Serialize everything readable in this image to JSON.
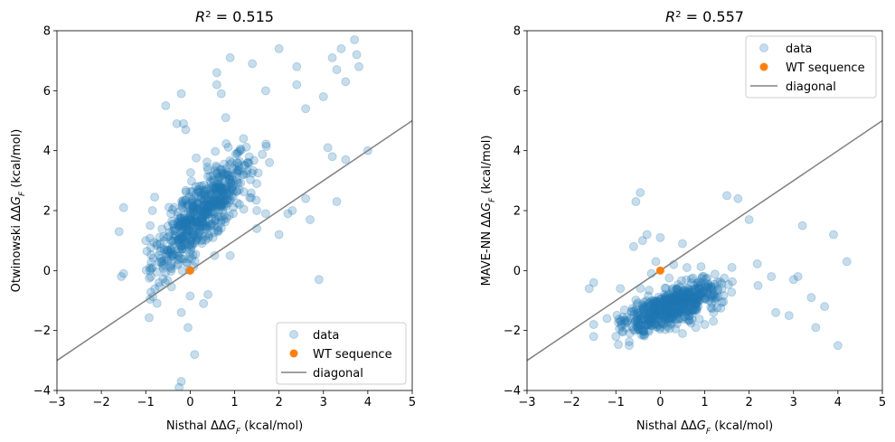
{
  "chart_data": [
    {
      "type": "scatter",
      "title": "R² = 0.515",
      "title_parts": {
        "r": "R",
        "sup": "2",
        "rest": " = 0.515"
      },
      "xlabel": "Nisthal ΔΔG_F (kcal/mol)",
      "xlabel_parts": {
        "pre": "Nisthal ΔΔ",
        "g": "G",
        "sub": "F",
        "post": " (kcal/mol)"
      },
      "ylabel": "Otwinowski ΔΔG_F (kcal/mol)",
      "ylabel_parts": {
        "pre": "Otwinowski ΔΔ",
        "g": "G",
        "sub": "F",
        "post": " (kcal/mol)"
      },
      "xlim": [
        -3,
        5
      ],
      "ylim": [
        -4,
        8
      ],
      "xticks": [
        -3,
        -2,
        -1,
        0,
        1,
        2,
        3,
        4,
        5
      ],
      "yticks": [
        -4,
        -2,
        0,
        2,
        4,
        6,
        8
      ],
      "xtick_labels": [
        "−3",
        "−2",
        "−1",
        "0",
        "1",
        "2",
        "3",
        "4",
        "5"
      ],
      "ytick_labels": [
        "−4",
        "−2",
        "0",
        "2",
        "4",
        "6",
        "8"
      ],
      "legend_position": "lower-right",
      "legend": [
        "data",
        "WT sequence",
        "diagonal"
      ],
      "series": [
        {
          "name": "data",
          "style": "scatter",
          "color": "#1f77b4",
          "alpha": 0.25,
          "trend": {
            "slope": 1.55,
            "intercept": 1.45
          },
          "points": [
            [
              -1.6,
              1.3
            ],
            [
              -1.5,
              2.1
            ],
            [
              -1.55,
              -0.2
            ],
            [
              -1.5,
              -0.1
            ],
            [
              -1.0,
              1.0
            ],
            [
              -0.9,
              1.5
            ],
            [
              -0.85,
              2.0
            ],
            [
              -0.8,
              2.45
            ],
            [
              -0.75,
              -0.05
            ],
            [
              -0.7,
              -0.4
            ],
            [
              -0.6,
              0.2
            ],
            [
              -0.55,
              5.5
            ],
            [
              -0.3,
              4.9
            ],
            [
              -0.2,
              5.9
            ],
            [
              -0.15,
              4.9
            ],
            [
              -0.1,
              4.7
            ],
            [
              -0.2,
              -1.4
            ],
            [
              -0.05,
              -1.9
            ],
            [
              0.0,
              -0.85
            ],
            [
              0.1,
              -2.8
            ],
            [
              -0.2,
              -3.7
            ],
            [
              -0.25,
              -3.9
            ],
            [
              0.3,
              -1.1
            ],
            [
              0.4,
              -0.8
            ],
            [
              0.55,
              0.5
            ],
            [
              0.6,
              6.6
            ],
            [
              0.6,
              6.2
            ],
            [
              0.7,
              5.9
            ],
            [
              0.9,
              7.1
            ],
            [
              1.4,
              6.9
            ],
            [
              1.7,
              6.0
            ],
            [
              2.0,
              7.4
            ],
            [
              2.4,
              6.8
            ],
            [
              2.4,
              6.2
            ],
            [
              2.6,
              5.4
            ],
            [
              3.2,
              7.1
            ],
            [
              3.4,
              7.4
            ],
            [
              3.7,
              7.7
            ],
            [
              3.75,
              7.2
            ],
            [
              3.8,
              6.8
            ],
            [
              3.5,
              6.3
            ],
            [
              3.3,
              6.7
            ],
            [
              3.0,
              5.8
            ],
            [
              1.2,
              4.4
            ],
            [
              0.8,
              5.1
            ],
            [
              0.9,
              0.5
            ],
            [
              1.5,
              2.9
            ],
            [
              1.7,
              1.9
            ],
            [
              2.0,
              1.2
            ],
            [
              2.2,
              1.9
            ],
            [
              2.3,
              2.0
            ],
            [
              2.7,
              1.7
            ],
            [
              2.6,
              2.4
            ],
            [
              3.1,
              4.1
            ],
            [
              3.2,
              3.8
            ],
            [
              3.3,
              2.3
            ],
            [
              3.5,
              3.7
            ],
            [
              4.0,
              4.0
            ],
            [
              2.9,
              -0.3
            ],
            [
              1.5,
              2.0
            ],
            [
              1.5,
              1.4
            ]
          ]
        },
        {
          "name": "WT sequence",
          "style": "point",
          "color": "#ff7f0e",
          "x": 0,
          "y": 0
        },
        {
          "name": "diagonal",
          "style": "line",
          "color": "#808080",
          "x": [
            -3,
            5
          ],
          "y": [
            -3,
            5
          ]
        }
      ]
    },
    {
      "type": "scatter",
      "title": "R² = 0.557",
      "title_parts": {
        "r": "R",
        "sup": "2",
        "rest": " = 0.557"
      },
      "xlabel": "Nisthal ΔΔG_F (kcal/mol)",
      "xlabel_parts": {
        "pre": "Nisthal ΔΔ",
        "g": "G",
        "sub": "F",
        "post": " (kcal/mol)"
      },
      "ylabel": "MAVE-NN ΔΔG_F (kcal/mol)",
      "ylabel_parts": {
        "pre": "MAVE-NN ΔΔ",
        "g": "G",
        "sub": "F",
        "post": " (kcal/mol)"
      },
      "xlim": [
        -3,
        5
      ],
      "ylim": [
        -4,
        8
      ],
      "xticks": [
        -3,
        -2,
        -1,
        0,
        1,
        2,
        3,
        4,
        5
      ],
      "yticks": [
        -4,
        -2,
        0,
        2,
        4,
        6,
        8
      ],
      "xtick_labels": [
        "−3",
        "−2",
        "−1",
        "0",
        "1",
        "2",
        "3",
        "4",
        "5"
      ],
      "ytick_labels": [
        "−4",
        "−2",
        "0",
        "2",
        "4",
        "6",
        "8"
      ],
      "legend_position": "upper-right",
      "legend": [
        "data",
        "WT sequence",
        "diagonal"
      ],
      "series": [
        {
          "name": "data",
          "style": "scatter",
          "color": "#1f77b4",
          "alpha": 0.25,
          "trend": {
            "slope": 0.55,
            "intercept": -1.35
          },
          "points": [
            [
              -1.6,
              -0.6
            ],
            [
              -1.5,
              -0.4
            ],
            [
              -1.5,
              -1.8
            ],
            [
              -1.5,
              -2.2
            ],
            [
              -1.2,
              -1.6
            ],
            [
              -1.0,
              -2.2
            ],
            [
              -0.9,
              -0.6
            ],
            [
              -0.7,
              -2.5
            ],
            [
              -0.55,
              2.3
            ],
            [
              -0.45,
              2.6
            ],
            [
              -0.6,
              0.8
            ],
            [
              -0.4,
              1.0
            ],
            [
              -0.3,
              1.2
            ],
            [
              -0.2,
              -0.1
            ],
            [
              -0.1,
              0.3
            ],
            [
              0.0,
              1.1
            ],
            [
              0.5,
              0.9
            ],
            [
              0.3,
              0.2
            ],
            [
              0.2,
              -0.25
            ],
            [
              0.6,
              0.1
            ],
            [
              1.5,
              2.5
            ],
            [
              1.75,
              2.4
            ],
            [
              2.0,
              1.7
            ],
            [
              2.6,
              -1.4
            ],
            [
              2.9,
              -1.5
            ],
            [
              3.2,
              1.5
            ],
            [
              3.4,
              -0.9
            ],
            [
              3.7,
              -1.2
            ],
            [
              3.5,
              -1.9
            ],
            [
              4.0,
              -2.5
            ],
            [
              3.9,
              1.2
            ],
            [
              4.2,
              0.3
            ],
            [
              3.0,
              -0.3
            ],
            [
              3.1,
              -0.2
            ],
            [
              2.5,
              -0.2
            ],
            [
              2.2,
              -0.5
            ],
            [
              1.0,
              -1.8
            ],
            [
              0.5,
              -2.1
            ],
            [
              0.8,
              -1.9
            ],
            [
              1.2,
              -1.4
            ]
          ]
        },
        {
          "name": "WT sequence",
          "style": "point",
          "color": "#ff7f0e",
          "x": 0,
          "y": 0
        },
        {
          "name": "diagonal",
          "style": "line",
          "color": "#808080",
          "x": [
            -3,
            5
          ],
          "y": [
            -3,
            5
          ]
        }
      ]
    }
  ]
}
